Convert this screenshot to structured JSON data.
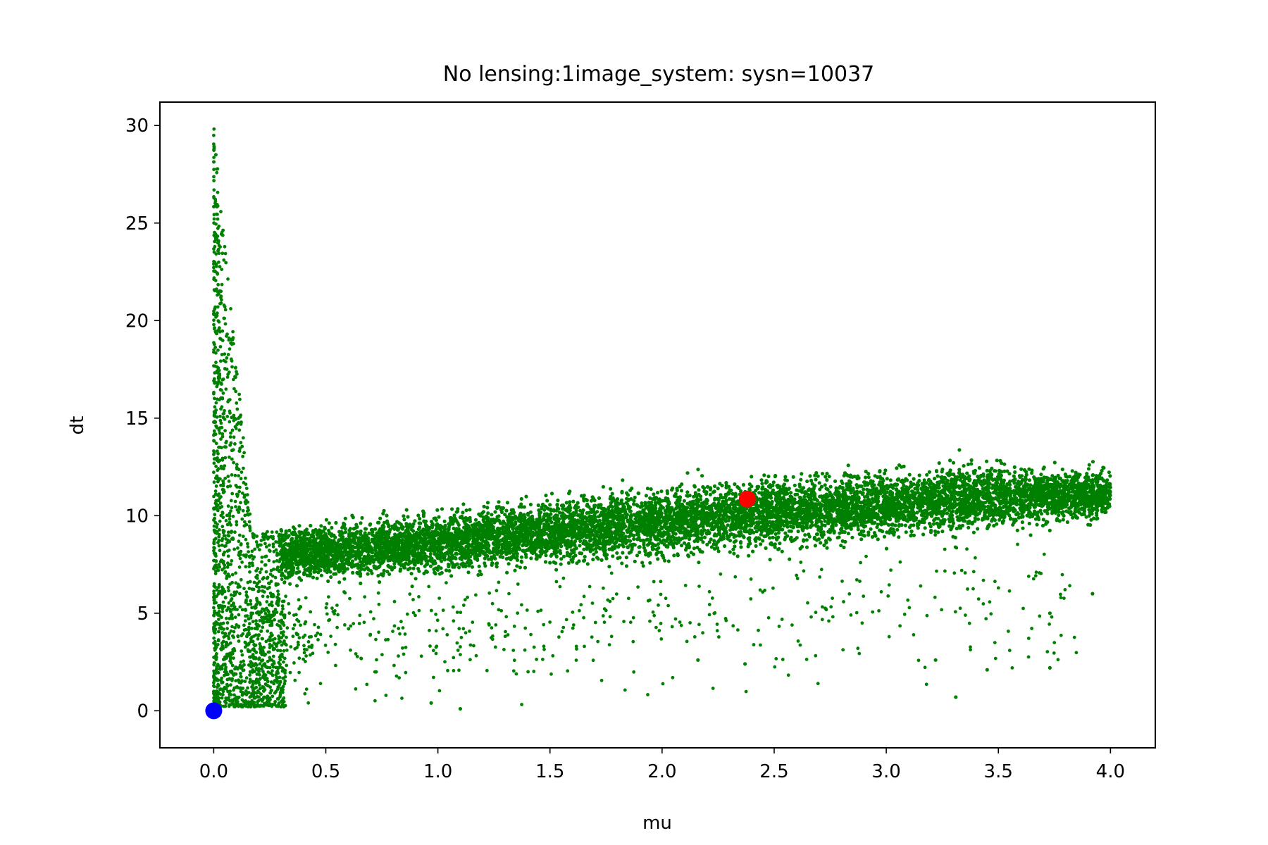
{
  "chart_data": {
    "type": "scatter",
    "title": "No lensing:1image_system: sysn=10037",
    "xlabel": "mu",
    "ylabel": "dt",
    "xlim": [
      -0.24,
      4.2
    ],
    "ylim": [
      -1.9,
      31.2
    ],
    "xticks": [
      0.0,
      0.5,
      1.0,
      1.5,
      2.0,
      2.5,
      3.0,
      3.5,
      4.0
    ],
    "xtick_labels": [
      "0.0",
      "0.5",
      "1.0",
      "1.5",
      "2.0",
      "2.5",
      "3.0",
      "3.5",
      "4.0"
    ],
    "yticks": [
      0,
      5,
      10,
      15,
      20,
      25,
      30
    ],
    "ytick_labels": [
      "0",
      "5",
      "10",
      "15",
      "20",
      "25",
      "30"
    ],
    "grid": false,
    "legend": "none",
    "series": [
      {
        "color": "#008000",
        "marker": "small-dot",
        "description_points": "dense cloud of simulated samples",
        "trend_band": [
          {
            "x": 0.4,
            "y_center": 8.1,
            "y_low": 6.3,
            "y_high": 10.2
          },
          {
            "x": 1.0,
            "y_center": 8.6,
            "y_low": 6.7,
            "y_high": 11.0
          },
          {
            "x": 1.5,
            "y_center": 9.2,
            "y_low": 7.0,
            "y_high": 11.6
          },
          {
            "x": 2.0,
            "y_center": 9.7,
            "y_low": 7.3,
            "y_high": 12.2
          },
          {
            "x": 2.5,
            "y_center": 10.2,
            "y_low": 7.9,
            "y_high": 12.8
          },
          {
            "x": 3.0,
            "y_center": 10.6,
            "y_low": 8.4,
            "y_high": 13.2
          },
          {
            "x": 3.5,
            "y_center": 11.0,
            "y_low": 8.9,
            "y_high": 13.4
          },
          {
            "x": 4.0,
            "y_center": 11.1,
            "y_low": 9.3,
            "y_high": 12.8
          }
        ],
        "spike_near_zero": {
          "x_range": [
            0.0,
            0.2
          ],
          "y_range": [
            0.2,
            29.8
          ]
        },
        "outliers": [
          {
            "x": 3.31,
            "y": 0.7
          },
          {
            "x": 3.22,
            "y": 2.6
          },
          {
            "x": 3.45,
            "y": 2.1
          },
          {
            "x": 3.73,
            "y": 2.2
          },
          {
            "x": 3.73,
            "y": 5.0
          },
          {
            "x": 3.92,
            "y": 6.0
          },
          {
            "x": 2.37,
            "y": 2.4
          },
          {
            "x": 2.16,
            "y": 2.6
          },
          {
            "x": 1.1,
            "y": 0.1
          },
          {
            "x": 0.97,
            "y": 0.4
          }
        ]
      },
      {
        "color": "#0000ff",
        "marker": "large-dot",
        "points": [
          {
            "x": 0.0,
            "y": 0.0
          }
        ]
      },
      {
        "color": "#ff0000",
        "marker": "large-dot",
        "points": [
          {
            "x": 2.38,
            "y": 10.85
          }
        ]
      }
    ]
  }
}
